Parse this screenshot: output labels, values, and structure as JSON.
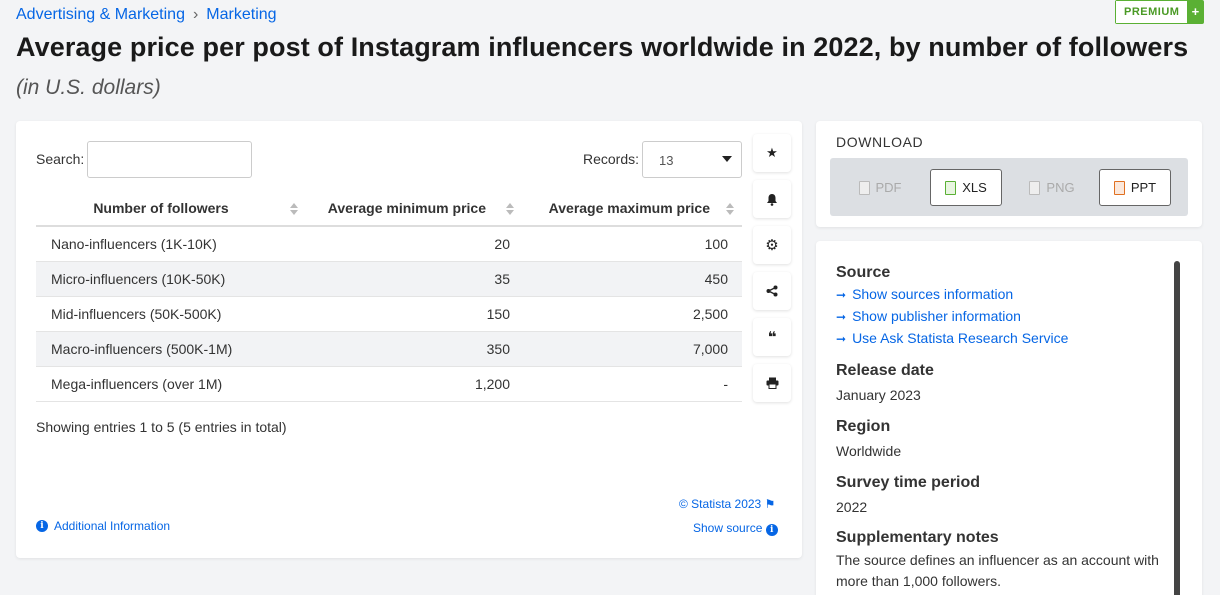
{
  "breadcrumb": {
    "first": "Advertising & Marketing",
    "sep": "›",
    "second": "Marketing"
  },
  "premium": {
    "label": "PREMIUM",
    "plus": "+"
  },
  "title": "Average price per post of Instagram influencers worldwide in 2022, by number of followers",
  "subtitle": "(in U.S. dollars)",
  "search": {
    "label": "Search:",
    "value": ""
  },
  "records": {
    "label": "Records:",
    "value": "13"
  },
  "table": {
    "headers": [
      "Number of followers",
      "Average minimum price",
      "Average maximum price"
    ],
    "rows": [
      [
        "Nano-influencers (1K-10K)",
        "20",
        "100"
      ],
      [
        "Micro-influencers (10K-50K)",
        "35",
        "450"
      ],
      [
        "Mid-influencers (50K-500K)",
        "150",
        "2,500"
      ],
      [
        "Macro-influencers (500K-1M)",
        "350",
        "7,000"
      ],
      [
        "Mega-influencers (over 1M)",
        "1,200",
        "-"
      ]
    ]
  },
  "showing": "Showing entries 1 to 5 (5 entries in total)",
  "copyright": "© Statista 2023",
  "show_source": "Show source",
  "additional_info": "Additional Information",
  "download": {
    "title": "DOWNLOAD",
    "pdf": "PDF",
    "xls": "XLS",
    "png": "PNG",
    "ppt": "PPT"
  },
  "source_panel": {
    "source_heading": "Source",
    "links": [
      "Show sources information",
      "Show publisher information",
      "Use Ask Statista Research Service"
    ],
    "release_heading": "Release date",
    "release_value": "January 2023",
    "region_heading": "Region",
    "region_value": "Worldwide",
    "survey_heading": "Survey time period",
    "survey_value": "2022",
    "notes_heading": "Supplementary notes",
    "notes_value": "The source defines an influencer as an account with more than 1,000 followers."
  },
  "icons": [
    "star-icon",
    "bell-icon",
    "gear-icon",
    "share-icon",
    "quote-icon",
    "print-icon",
    "info-icon",
    "flag-icon",
    "arrow-right-icon"
  ]
}
